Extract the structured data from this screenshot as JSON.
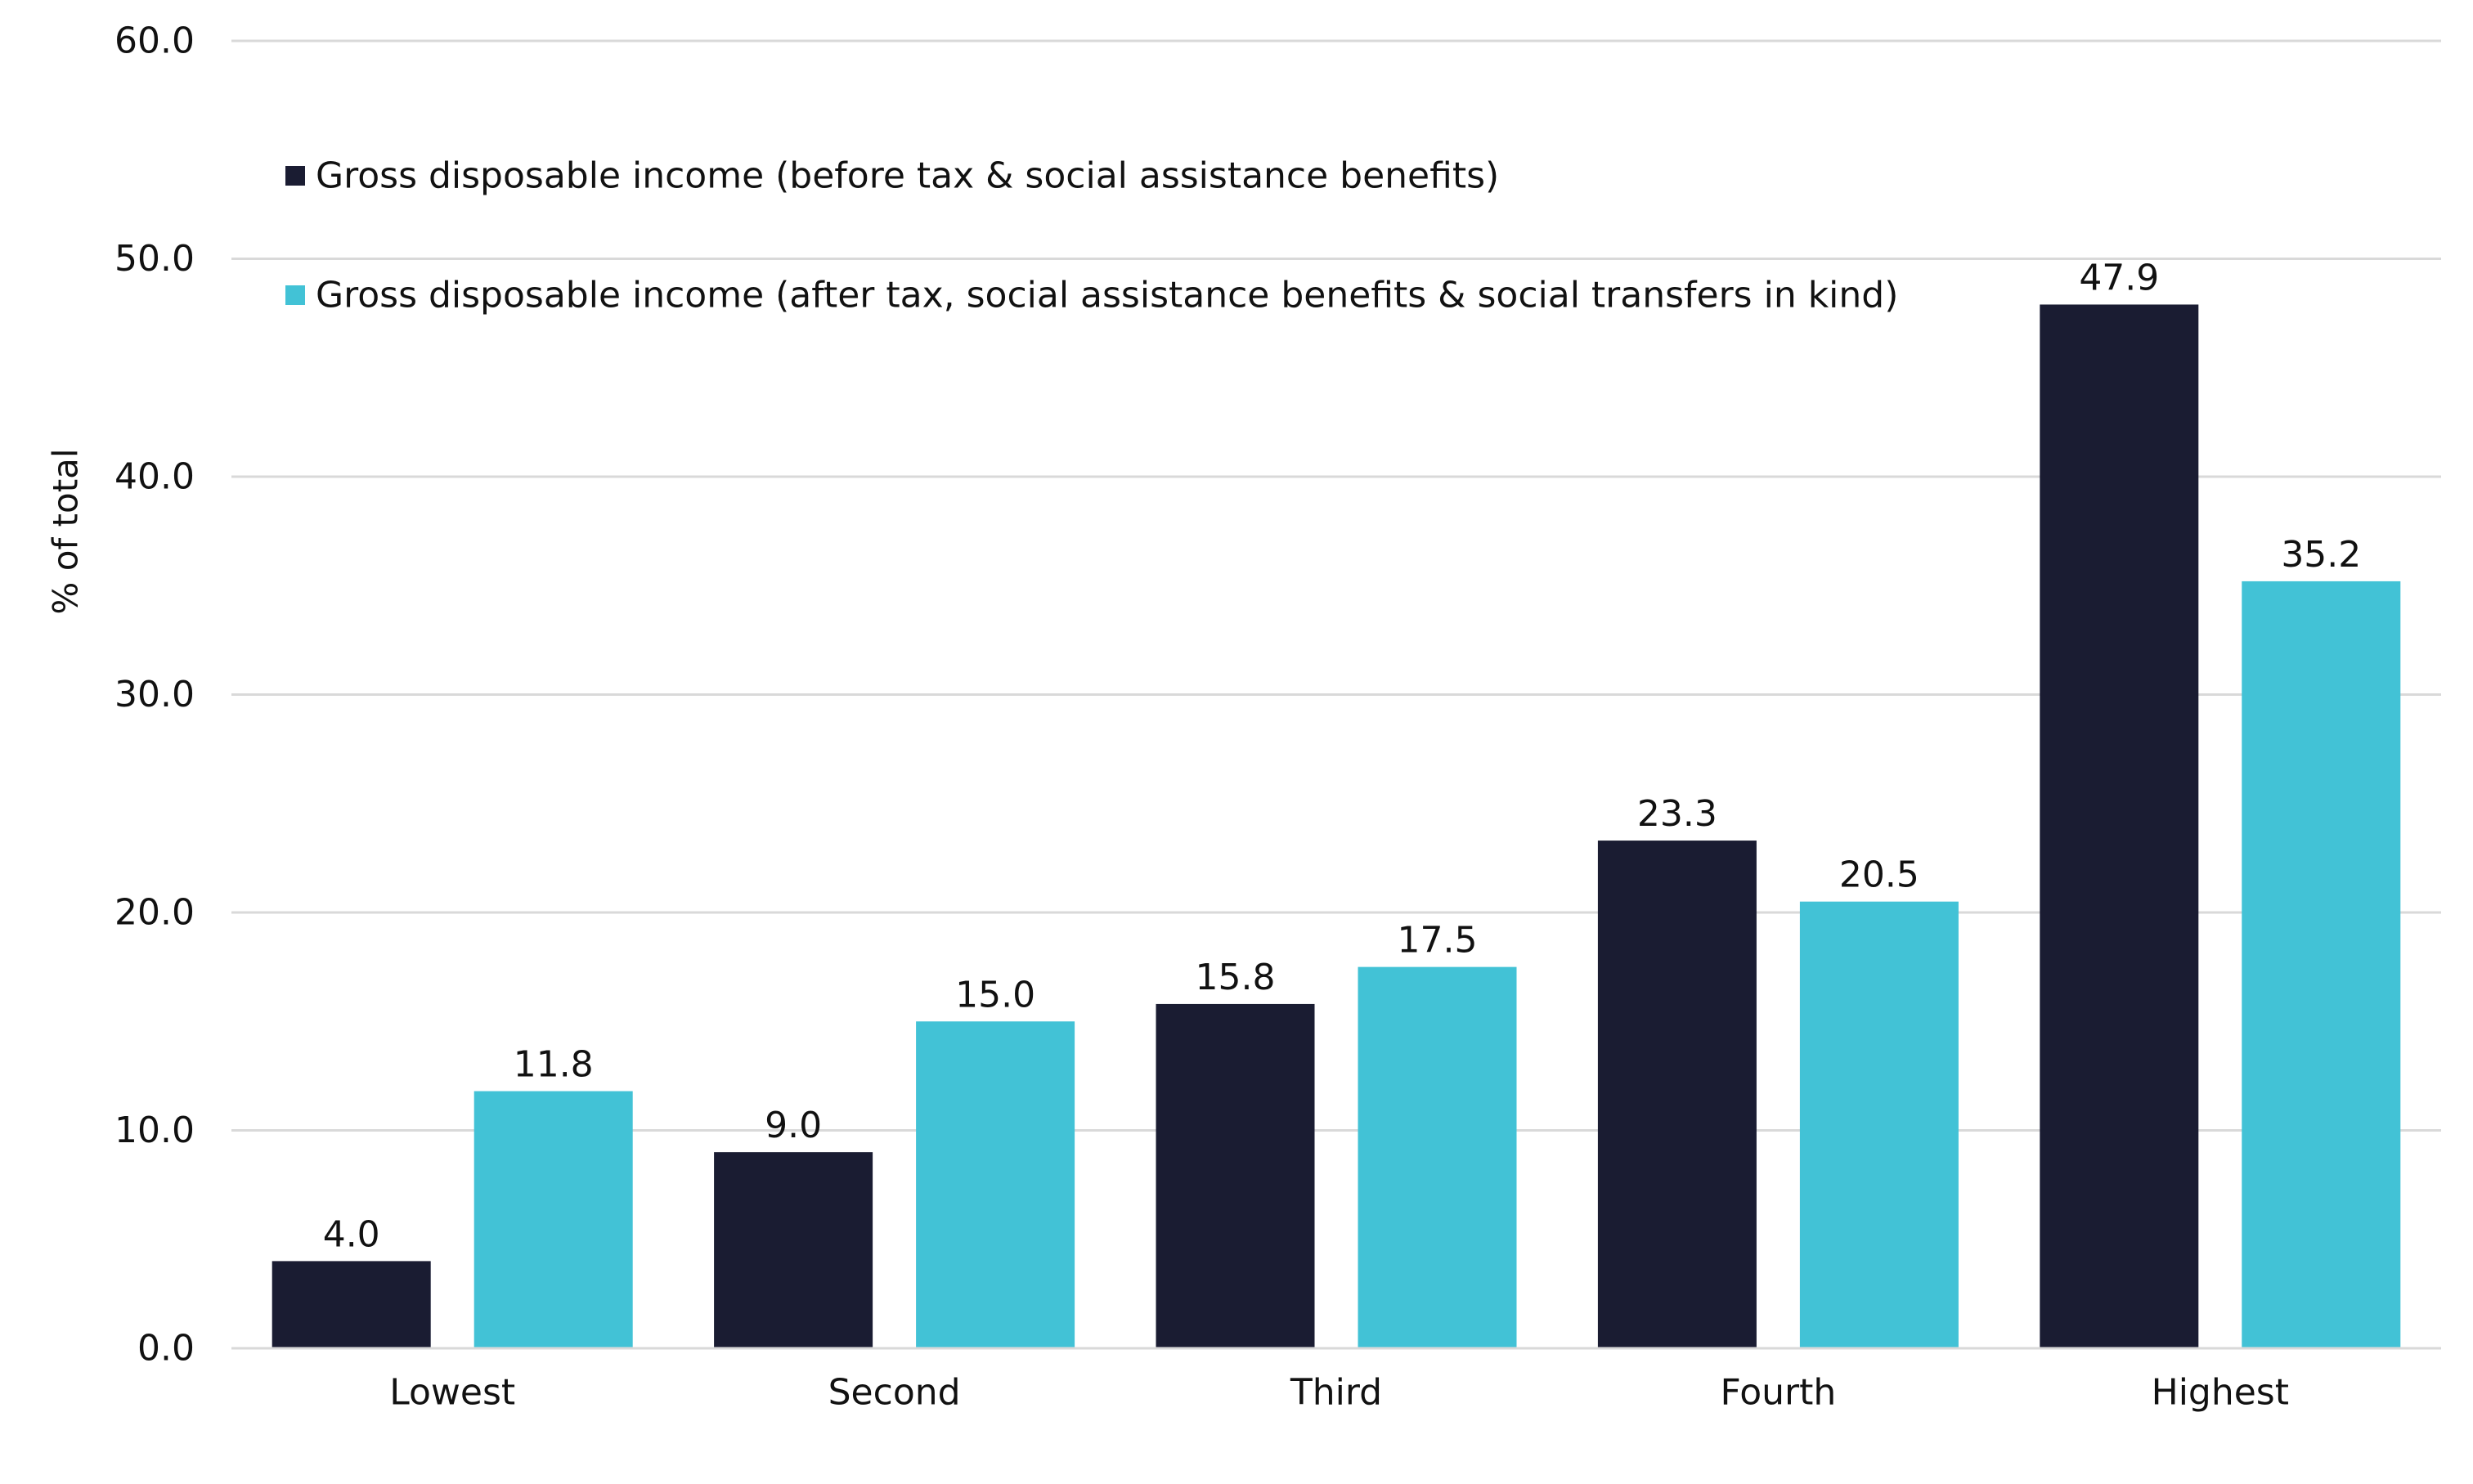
{
  "chart_data": {
    "type": "bar",
    "title": "",
    "xlabel": "",
    "ylabel": "% of total",
    "ylim": [
      0,
      60
    ],
    "yticks": [
      "0.0",
      "10.0",
      "20.0",
      "30.0",
      "40.0",
      "50.0",
      "60.0"
    ],
    "ytick_values": [
      0,
      10,
      20,
      30,
      40,
      50,
      60
    ],
    "grid": true,
    "legend_position": "top-left",
    "categories": [
      "Lowest",
      "Second",
      "Third",
      "Fourth",
      "Highest"
    ],
    "series": [
      {
        "name": "Gross disposable income (before tax & social assistance benefits)",
        "color": "#1a1c32",
        "values": [
          4.0,
          9.0,
          15.8,
          23.3,
          47.9
        ],
        "labels": [
          "4.0",
          "9.0",
          "15.8",
          "23.3",
          "47.9"
        ]
      },
      {
        "name": "Gross disposable income (after tax, social assistance benefits & social transfers in kind)",
        "color": "#42c2d6",
        "values": [
          11.8,
          15.0,
          17.5,
          20.5,
          35.2
        ],
        "labels": [
          "11.8",
          "15.0",
          "17.5",
          "20.5",
          "35.2"
        ]
      }
    ]
  }
}
